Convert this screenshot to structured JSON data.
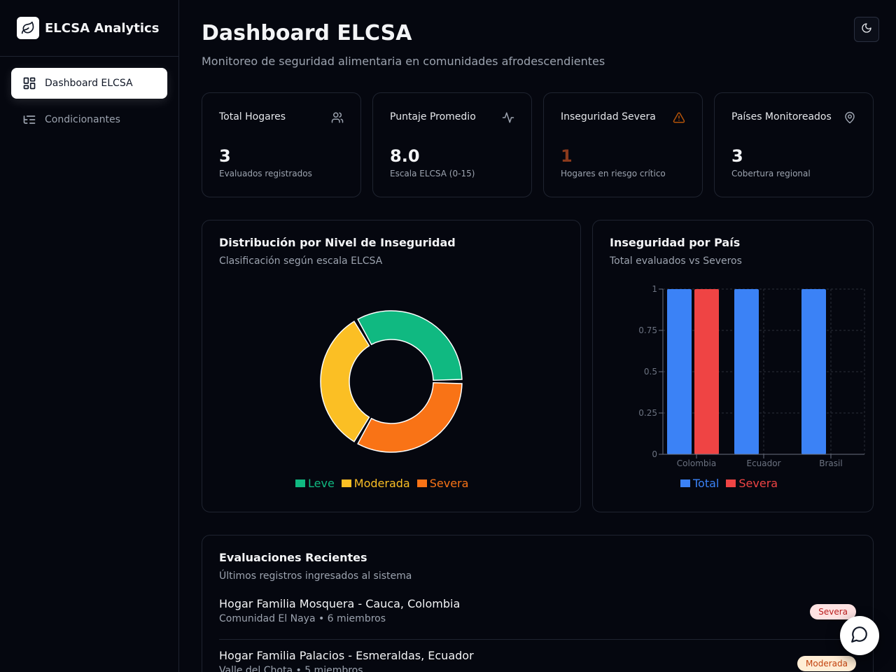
{
  "brand": {
    "name": "ELCSA Analytics",
    "logo_icon": "leaf-icon"
  },
  "sidebar": {
    "items": [
      {
        "label": "Dashboard ELCSA",
        "icon": "grid-icon",
        "active": true
      },
      {
        "label": "Condicionantes",
        "icon": "list-tree-icon",
        "active": false
      }
    ]
  },
  "header": {
    "title": "Dashboard ELCSA",
    "subtitle": "Monitoreo de seguridad alimentaria en comunidades afrodescendientes",
    "theme_icon": "moon-icon"
  },
  "stats": [
    {
      "title": "Total Hogares",
      "value": "3",
      "caption": "Evaluados registrados",
      "icon": "users-icon",
      "value_color": "#f3f4f6"
    },
    {
      "title": "Puntaje Promedio",
      "value": "8.0",
      "caption": "Escala ELCSA (0-15)",
      "icon": "activity-icon",
      "value_color": "#f3f4f6"
    },
    {
      "title": "Inseguridad Severa",
      "value": "1",
      "caption": "Hogares en riesgo crítico",
      "icon": "alert-triangle-icon",
      "value_color": "#8b3a1c"
    },
    {
      "title": "Países Monitoreados",
      "value": "3",
      "caption": "Cobertura regional",
      "icon": "map-pin-icon",
      "value_color": "#f3f4f6"
    }
  ],
  "donut_card": {
    "title": "Distribución por Nivel de Inseguridad",
    "subtitle": "Clasificación según escala ELCSA"
  },
  "bar_card": {
    "title": "Inseguridad por País",
    "subtitle": "Total evaluados vs Severos"
  },
  "chart_data": [
    {
      "type": "pie",
      "donut": true,
      "labels": [
        "Leve",
        "Moderada",
        "Severa"
      ],
      "values": [
        1,
        1,
        1
      ],
      "colors": [
        "#10b981",
        "#fbbf24",
        "#f97316"
      ]
    },
    {
      "type": "bar",
      "categories": [
        "Colombia",
        "Ecuador",
        "Brasil"
      ],
      "series": [
        {
          "name": "Total",
          "values": [
            1,
            1,
            1
          ],
          "color": "#3b82f6"
        },
        {
          "name": "Severa",
          "values": [
            1,
            0,
            0
          ],
          "color": "#ef4444"
        }
      ],
      "ylim": [
        0,
        1
      ],
      "yticks": [
        "0",
        "0.25",
        "0.5",
        "0.75",
        "1"
      ],
      "ytick_values": [
        0,
        0.25,
        0.5,
        0.75,
        1
      ],
      "grid": true,
      "legend": "bottom"
    }
  ],
  "recent": {
    "title": "Evaluaciones Recientes",
    "subtitle": "Últimos registros ingresados al sistema",
    "items": [
      {
        "name": "Hogar Familia Mosquera - Cauca, Colombia",
        "detail": "Comunidad El Naya • 6 miembros",
        "badge": "Severa",
        "badge_bg": "#fee2e2",
        "badge_fg": "#b91c1c"
      },
      {
        "name": "Hogar Familia Palacios - Esmeraldas, Ecuador",
        "detail": "Valle del Chota • 5 miembros",
        "badge": "Moderada",
        "badge_bg": "#ffedd5",
        "badge_fg": "#c2410c"
      }
    ]
  },
  "chat": {
    "icon": "message-circle-icon"
  }
}
